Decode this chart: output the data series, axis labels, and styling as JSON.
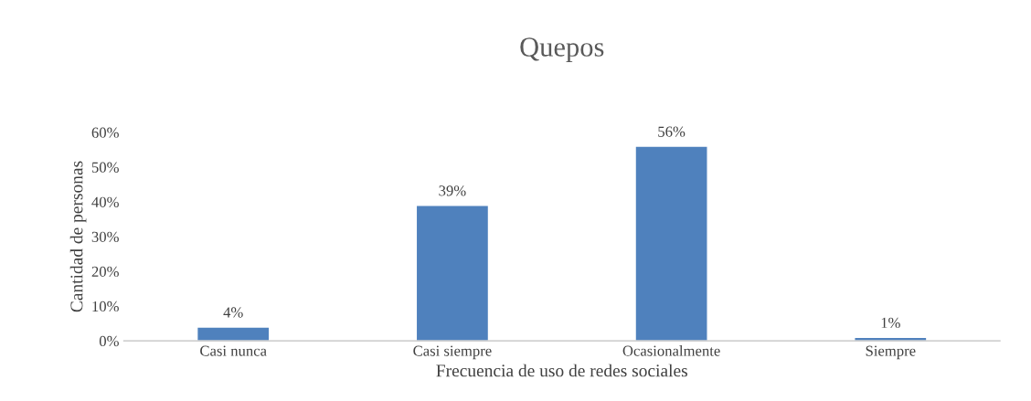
{
  "chart_data": {
    "type": "bar",
    "title": "Quepos",
    "xlabel": "Frecuencia de uso de redes sociales",
    "ylabel": "Cantidad de personas",
    "categories": [
      "Casi nunca",
      "Casi siempre",
      "Ocasionalmente",
      "Siempre"
    ],
    "values": [
      4,
      39,
      56,
      1
    ],
    "color": "#4f81bd",
    "value_labels": [
      "4%",
      "39%",
      "56%",
      "1%"
    ],
    "ylim": [
      0,
      60
    ],
    "yticks": [
      {
        "value": 0,
        "label": "0%"
      },
      {
        "value": 10,
        "label": "10%"
      },
      {
        "value": 20,
        "label": "20%"
      },
      {
        "value": 30,
        "label": "30%"
      },
      {
        "value": 40,
        "label": "40%"
      },
      {
        "value": 50,
        "label": "50%"
      },
      {
        "value": 60,
        "label": "60%"
      }
    ],
    "grid": false,
    "legend": false
  }
}
